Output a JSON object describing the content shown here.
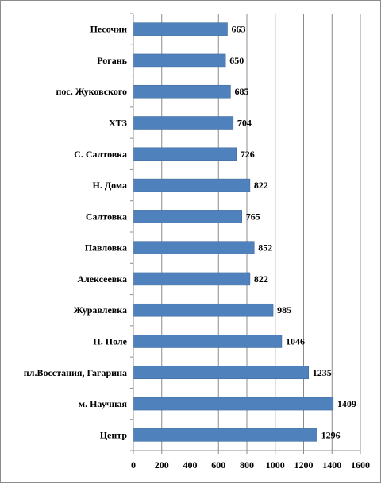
{
  "chart_data": {
    "type": "bar",
    "orientation": "horizontal",
    "categories": [
      "Песочин",
      "Рогань",
      "пос. Жуковского",
      "ХТЗ",
      "С. Салтовка",
      "Н. Дома",
      "Салтовка",
      "Павловка",
      "Алексеевка",
      "Журавлевка",
      "П. Поле",
      "пл.Восстания, Гагарина",
      "м. Научная",
      "Центр"
    ],
    "values": [
      663,
      650,
      685,
      704,
      726,
      822,
      765,
      852,
      822,
      985,
      1046,
      1235,
      1409,
      1296
    ],
    "data_labels": [
      "663",
      "650",
      "685",
      "704",
      "726",
      "822",
      "765",
      "852",
      "822",
      "985",
      "1046",
      "1235",
      "1409",
      "1296"
    ],
    "xlim": [
      0,
      1600
    ],
    "xticks": [
      "0",
      "200",
      "400",
      "600",
      "800",
      "1000",
      "1200",
      "1400",
      "1600"
    ],
    "grid": "vertical",
    "bar_color": "#4f81bd",
    "title": "",
    "xlabel": "",
    "ylabel": ""
  }
}
